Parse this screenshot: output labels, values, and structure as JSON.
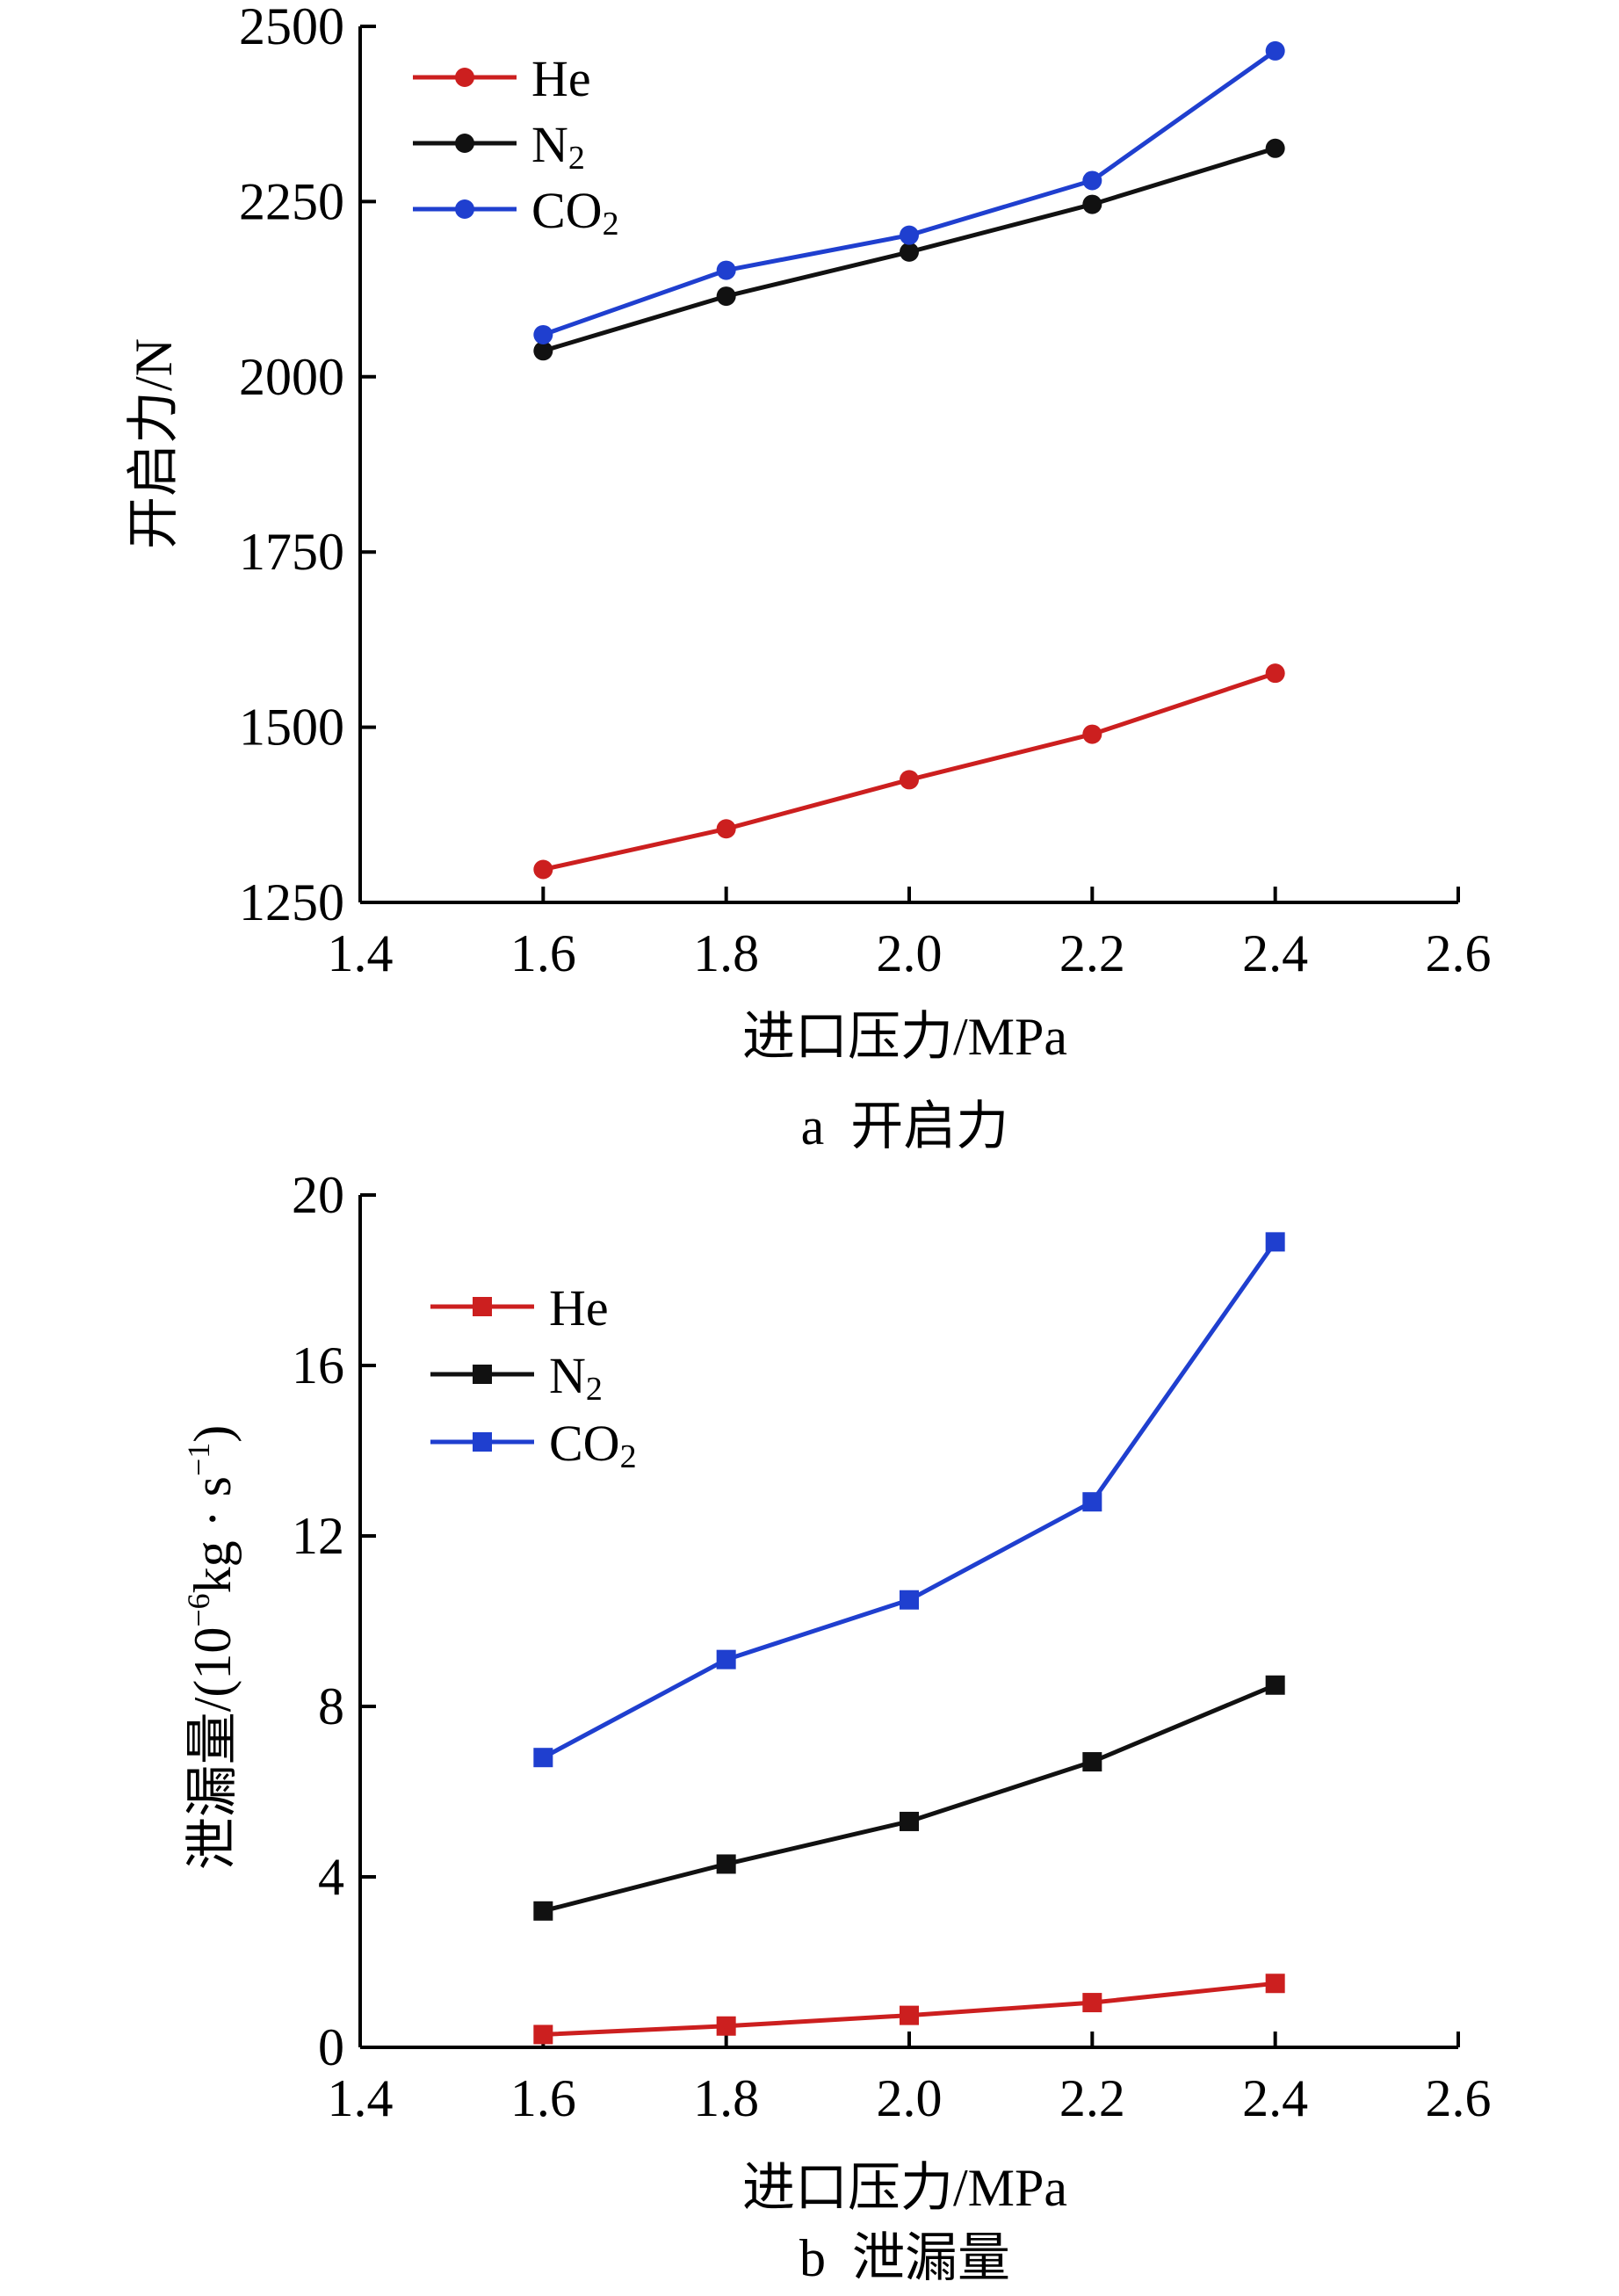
{
  "charts": [
    {
      "caption": "a  开启力",
      "chart_data": {
        "type": "line",
        "xlabel": "进口压力/MPa",
        "ylabel": "开启力/N",
        "xlim": [
          1.4,
          2.6
        ],
        "ylim": [
          1250,
          2500
        ],
        "xticks": [
          "1.4",
          "1.6",
          "1.8",
          "2.0",
          "2.2",
          "2.4",
          "2.6"
        ],
        "yticks": [
          "1250",
          "1500",
          "1750",
          "2000",
          "2250",
          "2500"
        ],
        "x": [
          1.6,
          1.8,
          2.0,
          2.2,
          2.4
        ],
        "marker": "circle",
        "legend_position": "top-left",
        "series": [
          {
            "name": "He",
            "label_main": "He",
            "label_sub": "",
            "color": "#cc1f1f",
            "values": [
              1297,
              1355,
              1425,
              1490,
              1577
            ]
          },
          {
            "name": "N2",
            "label_main": "N",
            "label_sub": "2",
            "color": "#111111",
            "values": [
              2037,
              2115,
              2178,
              2246,
              2326
            ]
          },
          {
            "name": "CO2",
            "label_main": "CO",
            "label_sub": "2",
            "color": "#1f3fcf",
            "values": [
              2060,
              2152,
              2202,
              2280,
              2465
            ]
          }
        ]
      }
    },
    {
      "caption": "b  泄漏量",
      "chart_data": {
        "type": "line",
        "xlabel": "进口压力/MPa",
        "ylabel_parts": {
          "main": "泄漏量/(10",
          "exp1": "−6",
          "mid": "kg · s",
          "exp2": "−1",
          "end": ")"
        },
        "xlim": [
          1.4,
          2.6
        ],
        "ylim": [
          0,
          20
        ],
        "xticks": [
          "1.4",
          "1.6",
          "1.8",
          "2.0",
          "2.2",
          "2.4",
          "2.6"
        ],
        "yticks": [
          "0",
          "4",
          "8",
          "12",
          "16",
          "20"
        ],
        "x": [
          1.6,
          1.8,
          2.0,
          2.2,
          2.4
        ],
        "marker": "square",
        "legend_position": "top-left",
        "series": [
          {
            "name": "He",
            "label_main": "He",
            "label_sub": "",
            "color": "#cc1f1f",
            "values": [
              0.3,
              0.5,
              0.75,
              1.05,
              1.5
            ]
          },
          {
            "name": "N2",
            "label_main": "N",
            "label_sub": "2",
            "color": "#111111",
            "values": [
              3.2,
              4.3,
              5.3,
              6.7,
              8.5
            ]
          },
          {
            "name": "CO2",
            "label_main": "CO",
            "label_sub": "2",
            "color": "#1f3fcf",
            "values": [
              6.8,
              9.1,
              10.5,
              12.8,
              18.9
            ]
          }
        ]
      }
    }
  ]
}
